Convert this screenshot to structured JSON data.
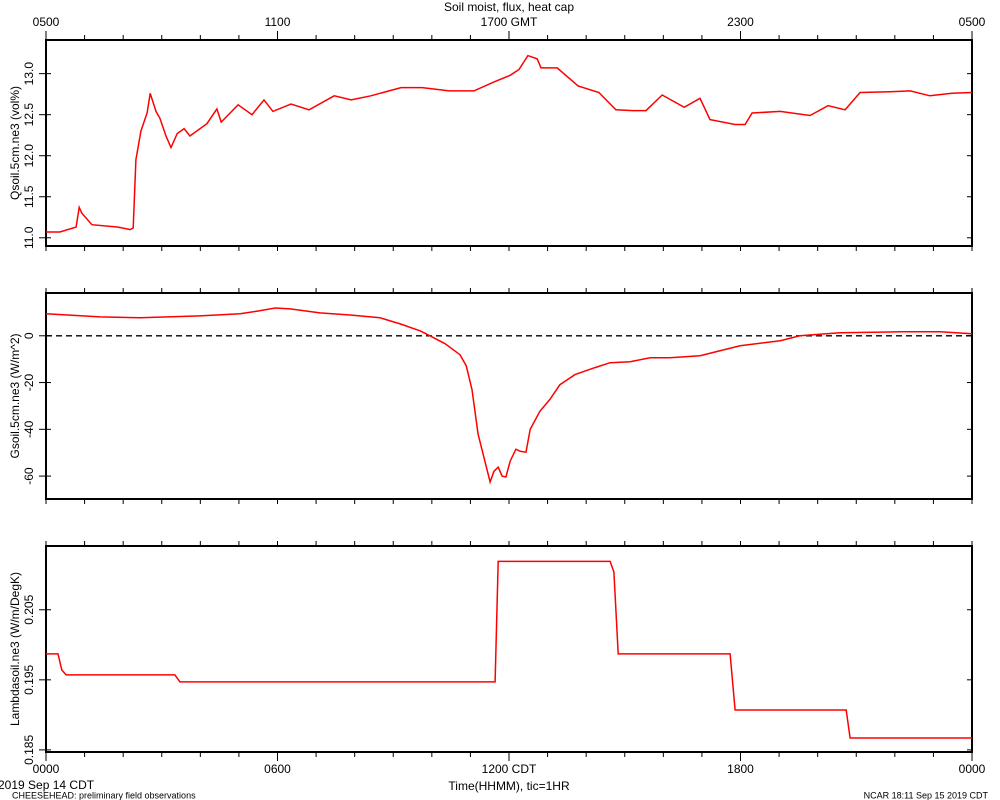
{
  "chart_data": [
    {
      "type": "line",
      "title": "Soil moist, flux, heat cap",
      "ylabel": "Qsoil.5cm.ne3 (vol%)",
      "color": "#ff0000",
      "xlim": [
        0,
        24
      ],
      "ylim": [
        10.9,
        13.41
      ],
      "x2ticks": [
        {
          "value": 0,
          "label": "0500"
        },
        {
          "value": 6,
          "label": "1100"
        },
        {
          "value": 12,
          "label": "1700 GMT"
        },
        {
          "value": 18,
          "label": "2300"
        },
        {
          "value": 24,
          "label": "0500"
        }
      ],
      "yticks": [
        {
          "value": 11,
          "label": "11.0"
        },
        11.5,
        {
          "value": 12,
          "label": "12.0"
        },
        12.5,
        {
          "value": 13,
          "label": "13.0"
        }
      ],
      "x": [
        0,
        0.36,
        0.78,
        0.86,
        0.93,
        1.19,
        1.87,
        2.18,
        2.26,
        2.33,
        2.46,
        2.62,
        2.7,
        2.85,
        2.95,
        3.11,
        3.24,
        3.4,
        3.58,
        3.73,
        4.17,
        4.43,
        4.54,
        4.98,
        5.34,
        5.65,
        5.88,
        6.35,
        6.82,
        7.47,
        7.91,
        8.42,
        9.2,
        9.75,
        10.45,
        11.09,
        11.61,
        12.03,
        12.26,
        12.49,
        12.73,
        12.83,
        13.25,
        13.79,
        14.33,
        14.77,
        15.21,
        15.55,
        15.97,
        16.54,
        16.95,
        17.21,
        17.86,
        18.12,
        18.3,
        19.03,
        19.8,
        20.27,
        20.71,
        21.1,
        21.88,
        22.4,
        22.91,
        23.48,
        24
      ],
      "values": [
        11.07,
        11.07,
        11.13,
        11.37,
        11.3,
        11.16,
        11.13,
        11.1,
        11.12,
        11.95,
        12.3,
        12.52,
        12.76,
        12.54,
        12.46,
        12.24,
        12.1,
        12.27,
        12.33,
        12.24,
        12.39,
        12.57,
        12.41,
        12.62,
        12.5,
        12.68,
        12.54,
        12.63,
        12.56,
        12.73,
        12.68,
        12.73,
        12.83,
        12.83,
        12.79,
        12.79,
        12.9,
        12.98,
        13.05,
        13.22,
        13.18,
        13.07,
        13.07,
        12.85,
        12.77,
        12.56,
        12.55,
        12.55,
        12.74,
        12.59,
        12.7,
        12.44,
        12.38,
        12.38,
        12.52,
        12.54,
        12.49,
        12.61,
        12.56,
        12.77,
        12.78,
        12.79,
        12.73,
        12.76,
        12.77
      ]
    },
    {
      "type": "line",
      "ylabel": "Gsoil.5cm.ne3 (W/m^2)",
      "color": "#ff0000",
      "hline": 0,
      "xlim": [
        0,
        24
      ],
      "ylim": [
        -69.8,
        18.3
      ],
      "yticks": [
        0,
        -20,
        -40,
        -60
      ],
      "x": [
        0,
        1.4,
        2.44,
        3.99,
        5.03,
        5.5,
        5.94,
        6.33,
        7.1,
        7.88,
        8.66,
        9.18,
        9.7,
        9.95,
        10.34,
        10.73,
        10.89,
        11.04,
        11.2,
        11.38,
        11.51,
        11.61,
        11.72,
        11.82,
        11.92,
        12.03,
        12.18,
        12.29,
        12.44,
        12.55,
        12.8,
        13.06,
        13.32,
        13.71,
        14.23,
        14.62,
        15.14,
        15.66,
        16.17,
        16.95,
        17.99,
        19.03,
        19.54,
        20.58,
        22.14,
        23.17,
        24
      ],
      "values": [
        9.4,
        8.1,
        7.7,
        8.5,
        9.4,
        10.6,
        11.9,
        11.5,
        9.8,
        8.9,
        7.7,
        5.1,
        2.1,
        0,
        -3.4,
        -8.1,
        -12.8,
        -23.0,
        -42.1,
        -54.0,
        -62.5,
        -57.9,
        -56.2,
        -60.0,
        -60.4,
        -53.6,
        -48.5,
        -49.4,
        -49.8,
        -40.0,
        -32.3,
        -27.2,
        -20.9,
        -16.6,
        -13.6,
        -11.5,
        -11.1,
        -9.4,
        -9.4,
        -8.5,
        -4.3,
        -2.1,
        0,
        1.3,
        1.7,
        1.7,
        0.9
      ]
    },
    {
      "type": "line",
      "ylabel": "Lambdasoil.ne3 (W/m/DegK)",
      "color": "#ff0000",
      "xlabel": "Time(HHMM), tic=1HR",
      "notes": [
        "2019 Sep 14 CDT",
        "CHEESEHEAD: preliminary field observations",
        "NCAR 18:11 Sep 15 2019 CDT"
      ],
      "xlim": [
        0,
        24
      ],
      "ylim": [
        0.1847,
        0.2141
      ],
      "yticks": [
        0.185,
        0.195,
        0.205
      ],
      "xticks": [
        {
          "value": 0,
          "label": "0000"
        },
        {
          "value": 6,
          "label": "0600"
        },
        {
          "value": 12,
          "label": "1200 CDT"
        },
        {
          "value": 18,
          "label": "1800"
        },
        {
          "value": 24,
          "label": "0000"
        }
      ],
      "x": [
        0,
        0.31,
        0.41,
        0.52,
        3.34,
        3.47,
        11.64,
        11.72,
        14.62,
        14.72,
        14.83,
        17.73,
        17.86,
        20.74,
        20.84,
        24
      ],
      "values": [
        0.1987,
        0.1987,
        0.1964,
        0.1957,
        0.1957,
        0.1947,
        0.1947,
        0.2119,
        0.2119,
        0.2104,
        0.1987,
        0.1987,
        0.1907,
        0.1907,
        0.1867,
        0.1867
      ]
    }
  ]
}
